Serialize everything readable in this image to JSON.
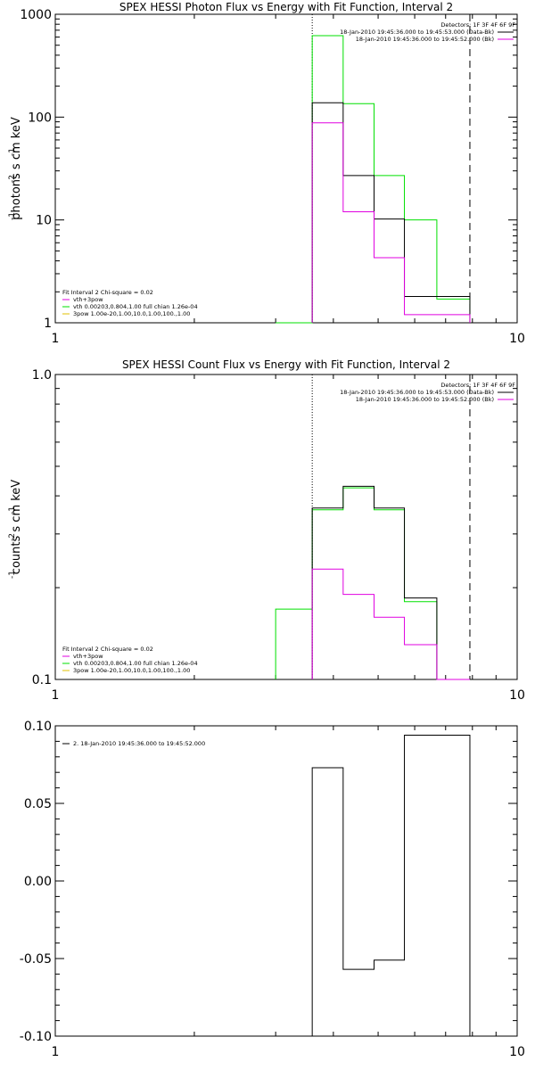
{
  "colors": {
    "background": "#ffffff",
    "axes": "#000000",
    "green": "#00e000",
    "magenta": "#e000e0",
    "black": "#000000",
    "yellow": "#e0c000"
  },
  "chart_data": [
    {
      "type": "line",
      "title": "SPEX HESSI Photon Flux vs Energy with Fit Function, Interval 2",
      "xscale": "log",
      "yscale": "log",
      "xlim": [
        1,
        10
      ],
      "ylim": [
        1,
        1000
      ],
      "xticks": [
        {
          "v": 1,
          "label": "1"
        },
        {
          "v": 10,
          "label": "10"
        }
      ],
      "yticks": [
        {
          "v": 1,
          "label": "1"
        },
        {
          "v": 10,
          "label": "10"
        },
        {
          "v": 100,
          "label": "100"
        },
        {
          "v": 1000,
          "label": "1000"
        }
      ],
      "ylabel": "photons s  cm   keV",
      "vlines": [
        {
          "x": 3.6,
          "style": "dotted"
        },
        {
          "x": 7.9,
          "style": "dashed"
        }
      ],
      "legend_right": {
        "header": "Detectors: 1F 3F 4F 6F 9F",
        "lines": [
          "18-Jan-2010 19:45:36.000 to 19:45:53.000 (Data-Bk)",
          "18-Jan-2010 19:45:36.000 to 19:45:52.000 (Bk)"
        ]
      },
      "legend_left": {
        "header": "Fit Interval 2   Chi-square = 0.02",
        "lines": [
          "vth+3pow",
          "vth 0.00203,0.804,1.00  full chian 1.26e-04",
          "3pow 1.00e-20,1.00,10.0,1.00,100.,1.00"
        ]
      },
      "series": [
        {
          "style": "green",
          "edges": [
            3.0,
            3.6,
            4.2,
            4.9,
            5.7,
            6.7,
            7.9
          ],
          "values": [
            1,
            620,
            135,
            27,
            10,
            1.7
          ]
        },
        {
          "style": "black",
          "edges": [
            3.6,
            4.2,
            4.9,
            5.7,
            6.7,
            7.9
          ],
          "values": [
            138,
            27,
            10.2,
            1.8,
            1.8
          ]
        },
        {
          "style": "magenta",
          "edges": [
            3.6,
            4.2,
            4.9,
            5.7,
            6.7,
            7.9
          ],
          "values": [
            88,
            12,
            4.3,
            1.2,
            1.2
          ]
        }
      ]
    },
    {
      "type": "line",
      "title": "SPEX HESSI Count Flux vs Energy with Fit Function, Interval 2",
      "xscale": "log",
      "yscale": "log",
      "xlim": [
        1,
        10
      ],
      "ylim": [
        0.1,
        1.0
      ],
      "xticks": [
        {
          "v": 1,
          "label": "1"
        },
        {
          "v": 10,
          "label": "10"
        }
      ],
      "yticks": [
        {
          "v": 0.1,
          "label": "0.1"
        },
        {
          "v": 1.0,
          "label": "1.0"
        }
      ],
      "ylabel": "counts s  cm   keV",
      "vlines": [
        {
          "x": 3.6,
          "style": "dotted"
        },
        {
          "x": 7.9,
          "style": "dashed"
        }
      ],
      "legend_right": {
        "header": "Detectors: 1F 3F 4F 6F 9F",
        "lines": [
          "18-Jan-2010 19:45:36.000 to 19:45:53.000 (Data-Bk)",
          "18-Jan-2010 19:45:36.000 to 19:45:52.000 (Bk)"
        ]
      },
      "legend_left": {
        "header": "Fit Interval 2   Chi-square = 0.02",
        "lines": [
          "vth+3pow",
          "vth 0.00203,0.804,1.00  full chian 1.26e-04",
          "3pow 1.00e-20,1.00,10.0,1.00,100.,1.00"
        ]
      },
      "series": [
        {
          "style": "green",
          "edges": [
            3.0,
            3.6,
            4.2,
            4.9,
            5.7,
            6.7,
            7.9
          ],
          "values": [
            0.17,
            0.36,
            0.425,
            0.36,
            0.18,
            0.1
          ]
        },
        {
          "style": "black",
          "edges": [
            3.6,
            4.2,
            4.9,
            5.7,
            6.7,
            7.9
          ],
          "values": [
            0.365,
            0.43,
            0.365,
            0.185,
            0.1
          ]
        },
        {
          "style": "magenta",
          "edges": [
            3.6,
            4.2,
            4.9,
            5.7,
            6.7,
            7.9
          ],
          "values": [
            0.23,
            0.19,
            0.16,
            0.13,
            0.1
          ]
        }
      ]
    },
    {
      "type": "line",
      "title": "",
      "xscale": "log",
      "yscale": "linear",
      "xlim": [
        1,
        10
      ],
      "ylim": [
        -0.1,
        0.1
      ],
      "xticks": [
        {
          "v": 1,
          "label": "1"
        },
        {
          "v": 10,
          "label": "10"
        }
      ],
      "yticks": [
        {
          "v": -0.1,
          "label": "-0.10"
        },
        {
          "v": -0.05,
          "label": "-0.05"
        },
        {
          "v": 0.0,
          "label": "0.00"
        },
        {
          "v": 0.05,
          "label": "0.05"
        },
        {
          "v": 0.1,
          "label": "0.10"
        }
      ],
      "legend_left": {
        "header": "",
        "lines": [
          "2. 18-Jan-2010 19:45:36.000 to 19:45:52.000"
        ]
      },
      "series": [
        {
          "style": "black",
          "edges": [
            3.6,
            4.2,
            4.9,
            5.7,
            6.7,
            7.9
          ],
          "values": [
            0.073,
            -0.057,
            -0.051,
            0.094,
            0.094
          ]
        }
      ]
    }
  ]
}
